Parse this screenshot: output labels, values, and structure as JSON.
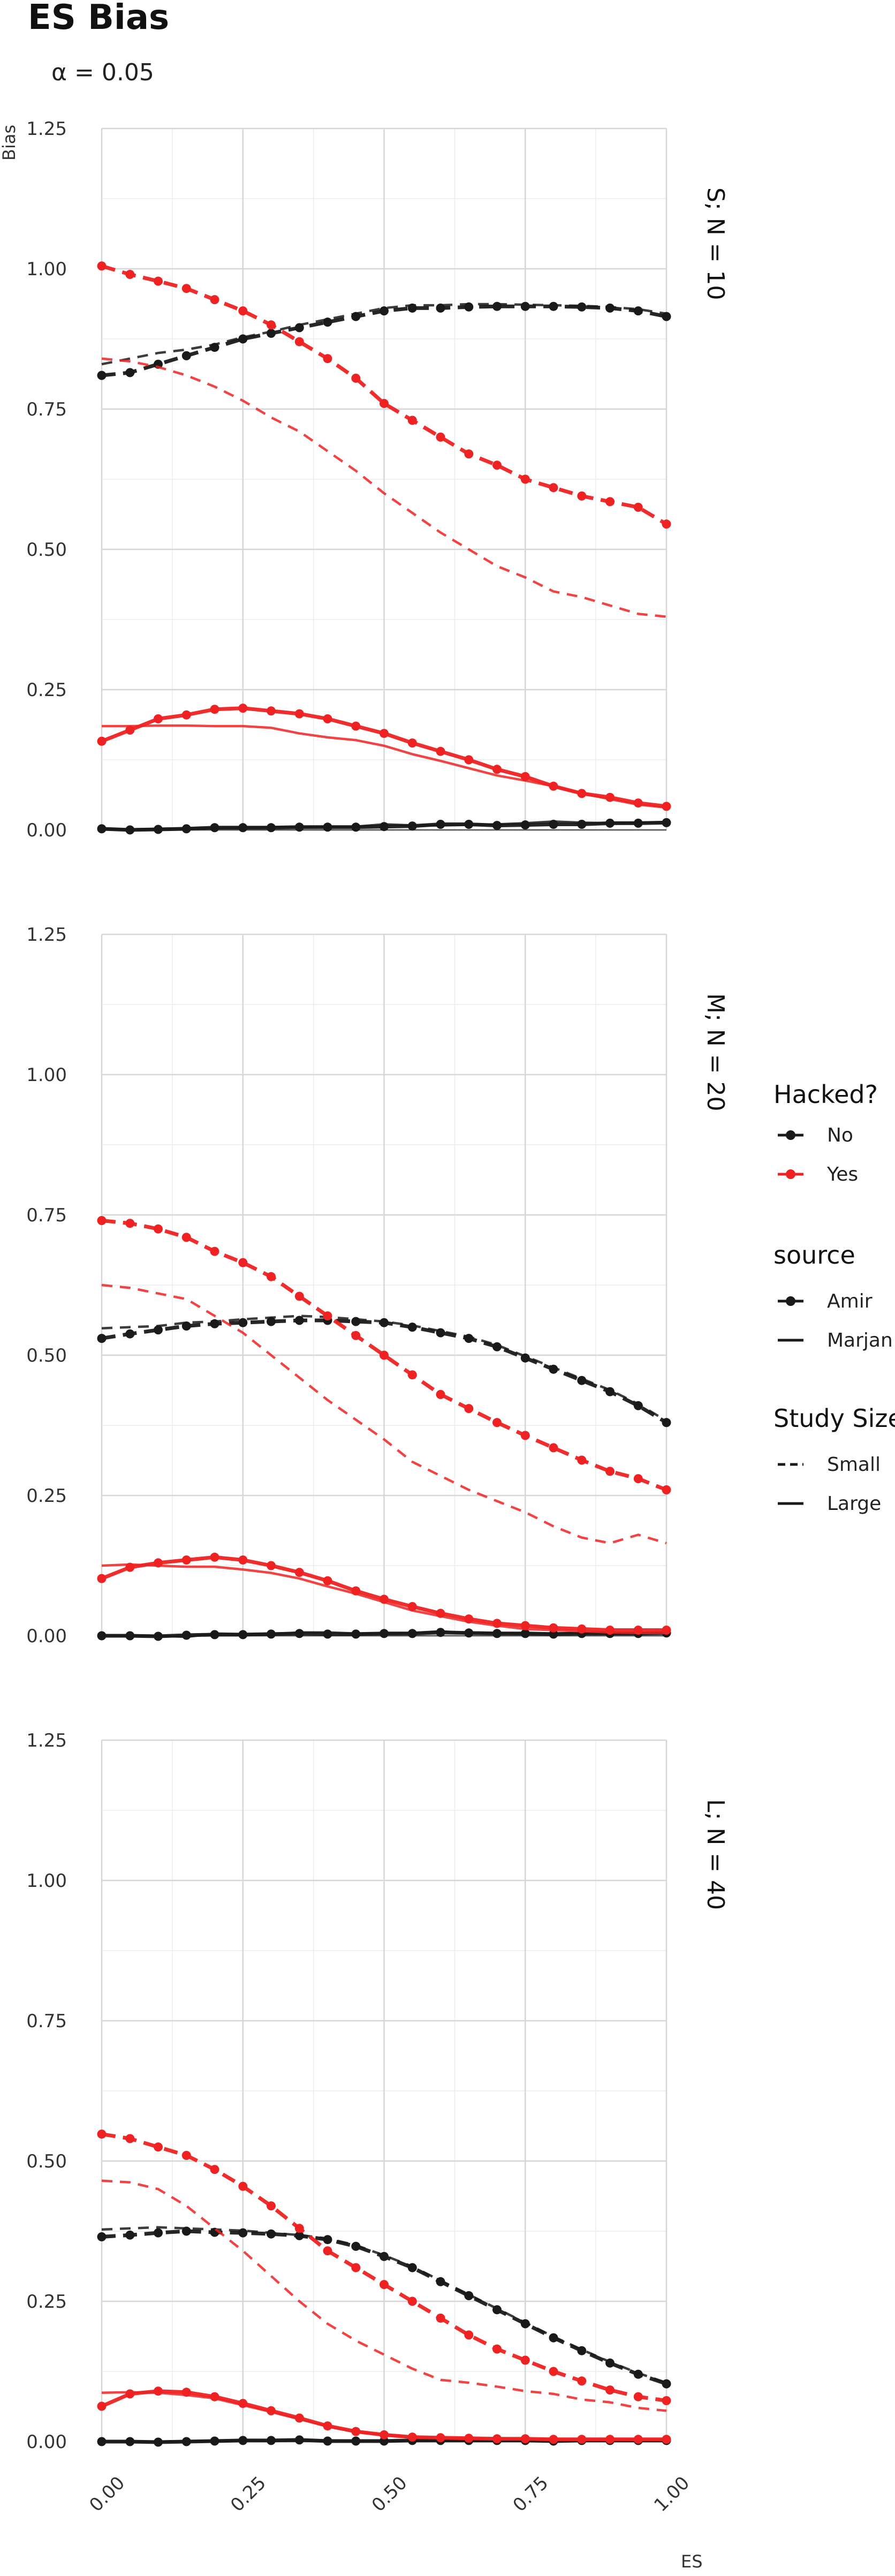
{
  "chart_data": {
    "type": "line",
    "title": "ES Bias",
    "subtitle": "α = 0.05",
    "xlabel": "ES",
    "ylabel": "Bias",
    "xlim": [
      0,
      1
    ],
    "ylim": [
      0,
      1.25
    ],
    "x_ticks": [
      "0.00",
      "0.25",
      "0.50",
      "0.75",
      "1.00"
    ],
    "y_ticks": [
      "0.00",
      "0.25",
      "0.50",
      "0.75",
      "1.00",
      "1.25"
    ],
    "grid": true,
    "legend_position": "right",
    "x": [
      0,
      0.05,
      0.1,
      0.15,
      0.2,
      0.25,
      0.3,
      0.35,
      0.4,
      0.45,
      0.5,
      0.55,
      0.6,
      0.65,
      0.7,
      0.75,
      0.8,
      0.85,
      0.9,
      0.95,
      1.0
    ],
    "legend": {
      "hacked": {
        "title": "Hacked?",
        "items": [
          {
            "label": "No",
            "color": "#1a1a1a"
          },
          {
            "label": "Yes",
            "color": "#ee2222"
          }
        ]
      },
      "source": {
        "title": "source",
        "items": [
          {
            "label": "Amir",
            "marker": "point"
          },
          {
            "label": "Marjan",
            "marker": "none"
          }
        ]
      },
      "size": {
        "title": "Study Size",
        "items": [
          {
            "label": "Small",
            "line": "dashed"
          },
          {
            "label": "Large",
            "line": "solid"
          }
        ]
      }
    },
    "panels": [
      {
        "label": "S; N = 10",
        "series": [
          {
            "hacked": "No",
            "source": "Amir",
            "size": "Small",
            "values": [
              0.81,
              0.815,
              0.83,
              0.845,
              0.86,
              0.875,
              0.885,
              0.895,
              0.905,
              0.915,
              0.925,
              0.93,
              0.93,
              0.932,
              0.933,
              0.933,
              0.933,
              0.932,
              0.93,
              0.925,
              0.915
            ]
          },
          {
            "hacked": "No",
            "source": "Marjan",
            "size": "Small",
            "values": [
              0.83,
              0.84,
              0.85,
              0.856,
              0.865,
              0.878,
              0.888,
              0.9,
              0.91,
              0.92,
              0.93,
              0.935,
              0.935,
              0.937,
              0.937,
              0.936,
              0.935,
              0.934,
              0.932,
              0.928,
              0.92
            ]
          },
          {
            "hacked": "Yes",
            "source": "Amir",
            "size": "Small",
            "values": [
              1.005,
              0.99,
              0.978,
              0.965,
              0.945,
              0.925,
              0.9,
              0.87,
              0.84,
              0.805,
              0.76,
              0.73,
              0.7,
              0.67,
              0.65,
              0.625,
              0.61,
              0.595,
              0.585,
              0.575,
              0.545
            ]
          },
          {
            "hacked": "Yes",
            "source": "Marjan",
            "size": "Small",
            "values": [
              0.84,
              0.835,
              0.825,
              0.81,
              0.79,
              0.765,
              0.735,
              0.71,
              0.675,
              0.64,
              0.6,
              0.565,
              0.53,
              0.5,
              0.47,
              0.45,
              0.425,
              0.415,
              0.4,
              0.385,
              0.38
            ]
          },
          {
            "hacked": "No",
            "source": "Amir",
            "size": "Large",
            "values": [
              0.002,
              0.0,
              0.001,
              0.002,
              0.004,
              0.004,
              0.004,
              0.005,
              0.005,
              0.005,
              0.006,
              0.007,
              0.01,
              0.01,
              0.008,
              0.009,
              0.01,
              0.01,
              0.012,
              0.012,
              0.013
            ]
          },
          {
            "hacked": "No",
            "source": "Marjan",
            "size": "Large",
            "values": [
              0.002,
              0.001,
              0.002,
              0.003,
              0.003,
              0.004,
              0.005,
              0.005,
              0.006,
              0.006,
              0.01,
              0.008,
              0.008,
              0.009,
              0.01,
              0.012,
              0.015,
              0.013,
              0.012,
              0.013,
              0.014
            ]
          },
          {
            "hacked": "Yes",
            "source": "Amir",
            "size": "Large",
            "values": [
              0.158,
              0.178,
              0.198,
              0.205,
              0.215,
              0.217,
              0.212,
              0.207,
              0.198,
              0.185,
              0.172,
              0.155,
              0.14,
              0.125,
              0.108,
              0.095,
              0.078,
              0.065,
              0.058,
              0.048,
              0.042
            ]
          },
          {
            "hacked": "Yes",
            "source": "Marjan",
            "size": "Large",
            "values": [
              0.185,
              0.185,
              0.186,
              0.186,
              0.185,
              0.185,
              0.182,
              0.172,
              0.165,
              0.16,
              0.15,
              0.135,
              0.123,
              0.11,
              0.097,
              0.088,
              0.078,
              0.065,
              0.055,
              0.045,
              0.04
            ]
          }
        ]
      },
      {
        "label": "M; N = 20",
        "series": [
          {
            "hacked": "No",
            "source": "Amir",
            "size": "Small",
            "values": [
              0.53,
              0.538,
              0.545,
              0.552,
              0.556,
              0.558,
              0.56,
              0.562,
              0.562,
              0.56,
              0.558,
              0.55,
              0.54,
              0.53,
              0.515,
              0.495,
              0.475,
              0.455,
              0.435,
              0.41,
              0.38
            ]
          },
          {
            "hacked": "No",
            "source": "Marjan",
            "size": "Small",
            "values": [
              0.548,
              0.55,
              0.552,
              0.558,
              0.56,
              0.564,
              0.567,
              0.57,
              0.568,
              0.564,
              0.56,
              0.553,
              0.543,
              0.533,
              0.518,
              0.498,
              0.478,
              0.458,
              0.438,
              0.413,
              0.383
            ]
          },
          {
            "hacked": "Yes",
            "source": "Amir",
            "size": "Small",
            "values": [
              0.74,
              0.735,
              0.725,
              0.71,
              0.685,
              0.665,
              0.64,
              0.605,
              0.57,
              0.535,
              0.5,
              0.465,
              0.43,
              0.405,
              0.38,
              0.357,
              0.335,
              0.313,
              0.293,
              0.28,
              0.26
            ]
          },
          {
            "hacked": "Yes",
            "source": "Marjan",
            "size": "Small",
            "values": [
              0.625,
              0.62,
              0.61,
              0.6,
              0.57,
              0.54,
              0.5,
              0.46,
              0.42,
              0.385,
              0.35,
              0.31,
              0.285,
              0.26,
              0.24,
              0.22,
              0.195,
              0.175,
              0.165,
              0.18,
              0.165
            ]
          },
          {
            "hacked": "No",
            "source": "Amir",
            "size": "Large",
            "values": [
              0.0,
              0.0,
              -0.001,
              0.001,
              0.002,
              0.002,
              0.003,
              0.004,
              0.003,
              0.003,
              0.004,
              0.004,
              0.006,
              0.005,
              0.004,
              0.004,
              0.003,
              0.004,
              0.004,
              0.004,
              0.005
            ]
          },
          {
            "hacked": "No",
            "source": "Marjan",
            "size": "Large",
            "values": [
              0.001,
              0.0,
              0.0,
              -0.002,
              0.004,
              0.003,
              0.003,
              0.006,
              0.006,
              0.004,
              0.004,
              0.005,
              0.008,
              0.005,
              0.005,
              0.004,
              0.004,
              0.005,
              0.004,
              0.005,
              0.006
            ]
          },
          {
            "hacked": "Yes",
            "source": "Amir",
            "size": "Large",
            "values": [
              0.102,
              0.122,
              0.13,
              0.135,
              0.14,
              0.135,
              0.125,
              0.113,
              0.098,
              0.08,
              0.065,
              0.052,
              0.04,
              0.03,
              0.022,
              0.018,
              0.014,
              0.012,
              0.01,
              0.01,
              0.01
            ]
          },
          {
            "hacked": "Yes",
            "source": "Marjan",
            "size": "Large",
            "values": [
              0.125,
              0.127,
              0.125,
              0.123,
              0.123,
              0.118,
              0.112,
              0.102,
              0.088,
              0.075,
              0.06,
              0.045,
              0.035,
              0.025,
              0.018,
              0.012,
              0.01,
              0.008,
              0.006,
              0.005,
              0.005
            ]
          }
        ]
      },
      {
        "label": "L; N = 40",
        "series": [
          {
            "hacked": "No",
            "source": "Amir",
            "size": "Small",
            "values": [
              0.365,
              0.368,
              0.372,
              0.375,
              0.373,
              0.372,
              0.37,
              0.367,
              0.36,
              0.348,
              0.33,
              0.31,
              0.285,
              0.26,
              0.235,
              0.21,
              0.185,
              0.162,
              0.14,
              0.12,
              0.103
            ]
          },
          {
            "hacked": "No",
            "source": "Marjan",
            "size": "Small",
            "values": [
              0.378,
              0.38,
              0.382,
              0.38,
              0.378,
              0.376,
              0.372,
              0.368,
              0.362,
              0.35,
              0.332,
              0.312,
              0.287,
              0.262,
              0.237,
              0.212,
              0.187,
              0.164,
              0.142,
              0.122,
              0.105
            ]
          },
          {
            "hacked": "Yes",
            "source": "Amir",
            "size": "Small",
            "values": [
              0.548,
              0.54,
              0.525,
              0.51,
              0.485,
              0.455,
              0.42,
              0.38,
              0.34,
              0.31,
              0.28,
              0.25,
              0.22,
              0.19,
              0.165,
              0.145,
              0.125,
              0.108,
              0.092,
              0.08,
              0.073
            ]
          },
          {
            "hacked": "Yes",
            "source": "Marjan",
            "size": "Small",
            "values": [
              0.465,
              0.462,
              0.45,
              0.42,
              0.38,
              0.34,
              0.295,
              0.25,
              0.21,
              0.18,
              0.155,
              0.13,
              0.11,
              0.105,
              0.098,
              0.09,
              0.085,
              0.075,
              0.07,
              0.06,
              0.055
            ]
          },
          {
            "hacked": "No",
            "source": "Amir",
            "size": "Large",
            "values": [
              0.0,
              0.0,
              -0.001,
              0.0,
              0.001,
              0.002,
              0.002,
              0.003,
              0.001,
              0.001,
              0.001,
              0.002,
              0.002,
              0.002,
              0.002,
              0.002,
              0.001,
              0.002,
              0.002,
              0.002,
              0.002
            ]
          },
          {
            "hacked": "No",
            "source": "Marjan",
            "size": "Large",
            "values": [
              0.001,
              0.0,
              0.0,
              0.001,
              0.001,
              0.002,
              0.001,
              0.002,
              0.002,
              0.001,
              0.002,
              0.001,
              0.002,
              0.002,
              0.002,
              0.002,
              0.002,
              0.002,
              0.002,
              0.003,
              0.003
            ]
          },
          {
            "hacked": "Yes",
            "source": "Amir",
            "size": "Large",
            "values": [
              0.063,
              0.085,
              0.09,
              0.088,
              0.08,
              0.068,
              0.055,
              0.042,
              0.028,
              0.018,
              0.012,
              0.008,
              0.007,
              0.006,
              0.005,
              0.005,
              0.004,
              0.004,
              0.004,
              0.004,
              0.004
            ]
          },
          {
            "hacked": "Yes",
            "source": "Marjan",
            "size": "Large",
            "values": [
              0.087,
              0.088,
              0.087,
              0.083,
              0.077,
              0.065,
              0.053,
              0.04,
              0.027,
              0.017,
              0.012,
              0.008,
              0.006,
              0.005,
              0.005,
              0.004,
              0.004,
              0.004,
              0.004,
              0.003,
              0.003
            ]
          }
        ]
      }
    ]
  }
}
